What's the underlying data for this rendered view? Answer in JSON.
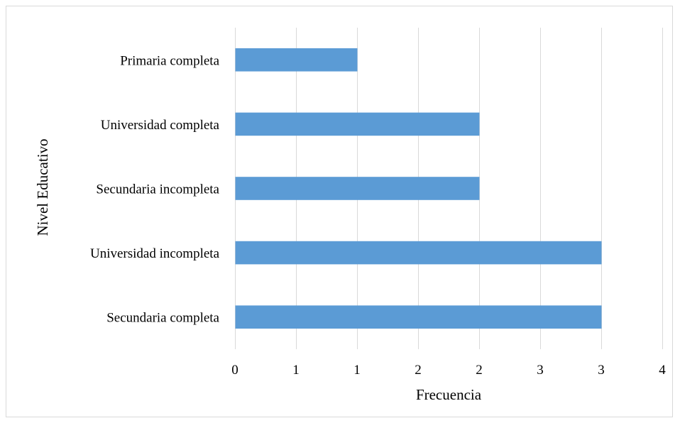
{
  "chart_data": {
    "type": "bar",
    "orientation": "horizontal",
    "title": "",
    "xlabel": "Frecuencia",
    "ylabel": "Nivel Educativo",
    "categories": [
      "Primaria completa",
      "Universidad completa",
      "Secundaria incompleta",
      "Universidad incompleta",
      "Secundaria completa"
    ],
    "values": [
      1,
      2,
      2,
      3,
      3
    ],
    "xlim": [
      0,
      3.5
    ],
    "x_tick_values": [
      0,
      0.5,
      1,
      1.5,
      2,
      2.5,
      3,
      3.5
    ],
    "x_tick_labels": [
      "0",
      "1",
      "1",
      "2",
      "2",
      "3",
      "3",
      "4"
    ],
    "grid": true,
    "bar_color": "#5b9bd5",
    "grid_color": "#d9d9d9",
    "legend": "none"
  }
}
